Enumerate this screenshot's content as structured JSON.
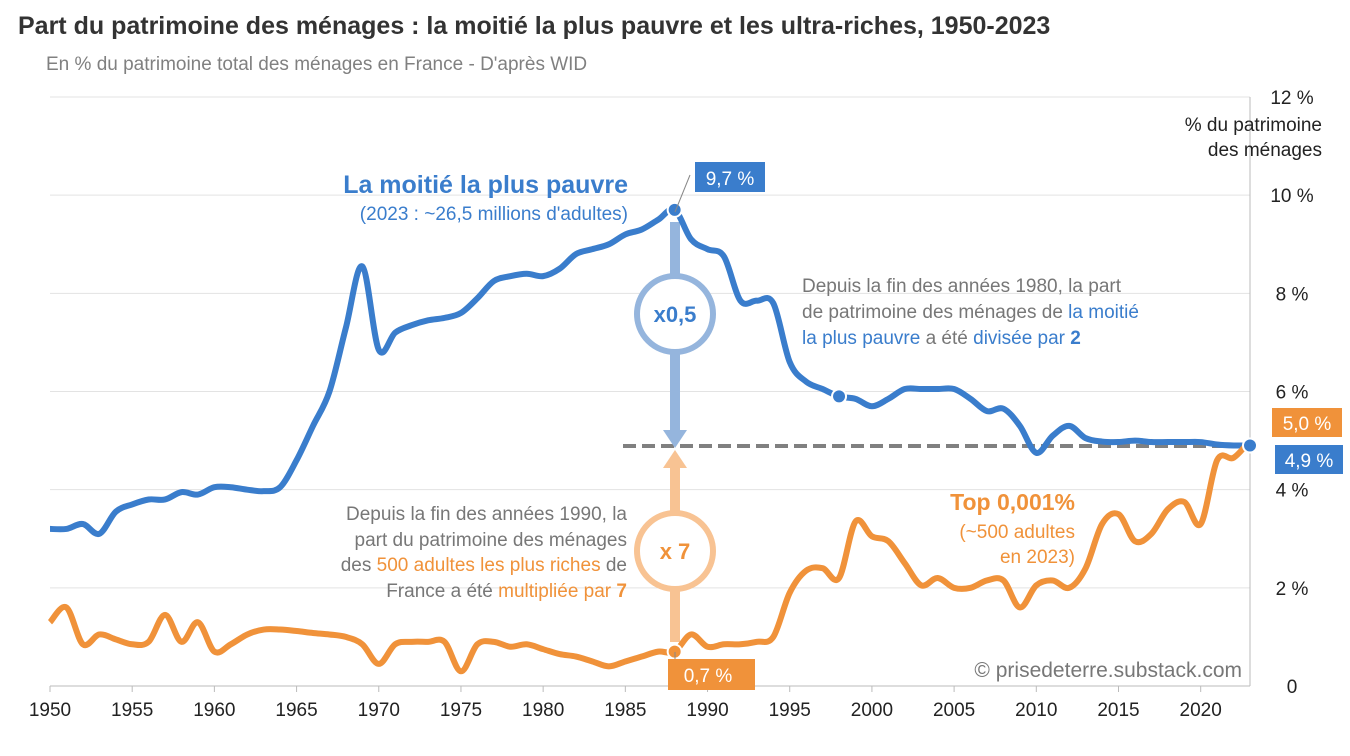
{
  "chart_data": {
    "type": "line",
    "title": "Part du patrimoine des ménages : la moitié la plus pauvre et les ultra-riches, 1950-2023",
    "subtitle": "En % du patrimoine total des ménages en France - D'après WID",
    "ylabel": [
      "% du patrimoine",
      "des ménages"
    ],
    "ylim": [
      0,
      12
    ],
    "xlim": [
      1950,
      2023
    ],
    "y_ticks": [
      0,
      2,
      4,
      6,
      8,
      10,
      12
    ],
    "y_tick_labels": [
      "0",
      "2 %",
      "4 %",
      "6 %",
      "8 %",
      "10 %",
      "12 %"
    ],
    "x_ticks": [
      "1950",
      "1955",
      "1960",
      "1965",
      "1970",
      "1975",
      "1980",
      "1985",
      "1990",
      "1995",
      "2000",
      "2005",
      "2010",
      "2015",
      "2020"
    ],
    "grid": true,
    "colors": {
      "bottom50": "#3a7dcc",
      "top": "#f0923a",
      "bottom50_light": "#95b5dd",
      "top_light": "#f8c393"
    },
    "x": [
      1950,
      1951,
      1952,
      1953,
      1954,
      1955,
      1956,
      1957,
      1958,
      1959,
      1960,
      1961,
      1962,
      1963,
      1964,
      1965,
      1966,
      1967,
      1968,
      1969,
      1970,
      1971,
      1972,
      1973,
      1974,
      1975,
      1976,
      1977,
      1978,
      1979,
      1980,
      1981,
      1982,
      1983,
      1984,
      1985,
      1986,
      1987,
      1988,
      1989,
      1990,
      1991,
      1992,
      1993,
      1994,
      1995,
      1996,
      1997,
      1998,
      1999,
      2000,
      2001,
      2002,
      2003,
      2004,
      2005,
      2006,
      2007,
      2008,
      2009,
      2010,
      2011,
      2012,
      2013,
      2014,
      2015,
      2016,
      2017,
      2018,
      2019,
      2020,
      2021,
      2022,
      2023
    ],
    "series": [
      {
        "name": "La moitié la plus pauvre",
        "values": [
          3.2,
          3.2,
          3.3,
          3.1,
          3.55,
          3.7,
          3.8,
          3.8,
          3.95,
          3.9,
          4.05,
          4.05,
          4.0,
          3.97,
          4.05,
          4.6,
          5.3,
          6.0,
          7.3,
          8.55,
          6.85,
          7.2,
          7.35,
          7.45,
          7.5,
          7.6,
          7.9,
          8.25,
          8.35,
          8.4,
          8.35,
          8.5,
          8.8,
          8.9,
          9.0,
          9.2,
          9.3,
          9.5,
          9.7,
          9.1,
          8.9,
          8.75,
          7.85,
          7.85,
          7.8,
          6.6,
          6.2,
          6.05,
          5.9,
          5.85,
          5.7,
          5.85,
          6.05,
          6.05,
          6.05,
          6.05,
          5.85,
          5.6,
          5.65,
          5.3,
          4.75,
          5.1,
          5.3,
          5.05,
          4.98,
          4.97,
          5.0,
          4.97,
          4.97,
          4.97,
          4.97,
          4.92,
          4.9,
          4.9
        ]
      },
      {
        "name": "Top 0,001%",
        "values": [
          1.3,
          1.6,
          0.85,
          1.05,
          0.95,
          0.85,
          0.9,
          1.45,
          0.9,
          1.3,
          0.7,
          0.85,
          1.05,
          1.15,
          1.15,
          1.12,
          1.08,
          1.05,
          1.0,
          0.85,
          0.45,
          0.85,
          0.9,
          0.9,
          0.9,
          0.3,
          0.85,
          0.9,
          0.8,
          0.85,
          0.75,
          0.65,
          0.6,
          0.5,
          0.4,
          0.5,
          0.6,
          0.7,
          0.7,
          1.05,
          0.8,
          0.85,
          0.85,
          0.9,
          1.0,
          1.9,
          2.35,
          2.4,
          2.2,
          3.35,
          3.05,
          2.95,
          2.5,
          2.05,
          2.2,
          2.0,
          2.0,
          2.15,
          2.15,
          1.6,
          2.05,
          2.15,
          2.0,
          2.4,
          3.3,
          3.5,
          2.95,
          3.1,
          3.6,
          3.75,
          3.3,
          4.6,
          4.65,
          5.0
        ]
      }
    ],
    "annotations": {
      "bottom_title": "La moitié la plus pauvre",
      "bottom_sub": "(2023 : ~26,5 millions d'adultes)",
      "top_title": "Top 0,001%",
      "top_sub1": "(~500 adultes",
      "top_sub2": "en 2023)",
      "label_1988_bottom": "9,7 %",
      "label_1988_top": "0,7 %",
      "label_2023_top": "5,0 %",
      "label_2023_bottom": "4,9 %",
      "ratio_bottom": "x0,5",
      "ratio_top": "x 7",
      "note_bottom": {
        "l1": "Depuis la fin des années 1980, la part",
        "l2a": "de patrimoine des ménages de ",
        "l2b": "la moitié",
        "l3a": "la plus pauvre",
        "l3b": " a été ",
        "l3c": "divisée par ",
        "l3d": "2"
      },
      "note_top": {
        "l1": "Depuis la fin des années 1990, la",
        "l2": "part du patrimoine des ménages",
        "l3a": "des ",
        "l3b": "500 adultes les plus riches",
        "l3c": " de",
        "l4a": "France a été ",
        "l4b": "multipliée par ",
        "l4c": "7"
      },
      "credit": "© prisedeterre.substack.com"
    }
  }
}
